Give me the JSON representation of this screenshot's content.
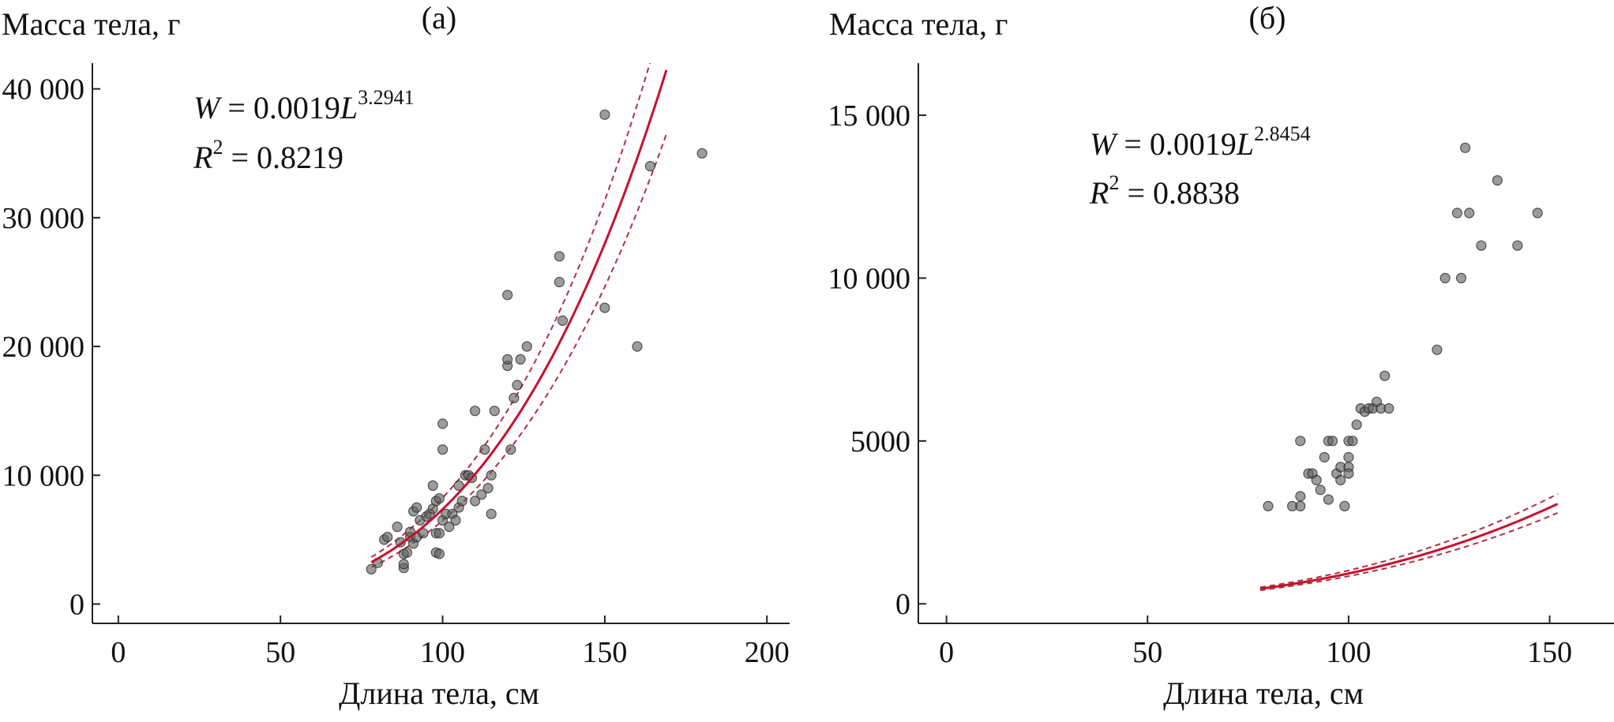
{
  "chart_data": [
    {
      "type": "scatter",
      "panel_label": "(а)",
      "ylabel": "Масса тела, г",
      "xlabel": "Длина тела, см",
      "equation": {
        "W": "W",
        "coef": " = 0.0019",
        "L": "L",
        "exponent": "3.2941",
        "R": "R",
        "sq": "2",
        "r2": " = 0.8219"
      },
      "xlim": [
        -8,
        207
      ],
      "ylim": [
        -1500,
        42000
      ],
      "xticks": [
        0,
        50,
        100,
        150,
        200
      ],
      "xtick_labels": [
        "0",
        "50",
        "100",
        "150",
        "200"
      ],
      "yticks": [
        0,
        10000,
        20000,
        30000,
        40000
      ],
      "ytick_labels": [
        "0",
        "10 000",
        "20 000",
        "30 000",
        "40 000"
      ],
      "fit": {
        "a": 0.0019,
        "b": 3.2941,
        "x_from": 78,
        "x_to": 169
      },
      "ci_band": {
        "upper_factor": 1.12,
        "lower_factor": 0.88
      },
      "points": [
        [
          78,
          2700
        ],
        [
          80,
          3200
        ],
        [
          82,
          5000
        ],
        [
          83,
          5200
        ],
        [
          86,
          6000
        ],
        [
          87,
          4800
        ],
        [
          88,
          2800
        ],
        [
          88,
          3100
        ],
        [
          88,
          3900
        ],
        [
          89,
          4000
        ],
        [
          90,
          5200
        ],
        [
          90,
          5600
        ],
        [
          91,
          4700
        ],
        [
          91,
          7200
        ],
        [
          92,
          5200
        ],
        [
          92,
          7500
        ],
        [
          93,
          6500
        ],
        [
          94,
          5500
        ],
        [
          95,
          6800
        ],
        [
          96,
          7000
        ],
        [
          97,
          7400
        ],
        [
          97,
          9200
        ],
        [
          98,
          8000
        ],
        [
          98,
          5500
        ],
        [
          98,
          4000
        ],
        [
          99,
          5500
        ],
        [
          99,
          3900
        ],
        [
          99,
          8200
        ],
        [
          100,
          12000
        ],
        [
          100,
          14000
        ],
        [
          100,
          6500
        ],
        [
          101,
          7000
        ],
        [
          102,
          6000
        ],
        [
          103,
          7000
        ],
        [
          104,
          6500
        ],
        [
          105,
          7500
        ],
        [
          105,
          9200
        ],
        [
          106,
          8000
        ],
        [
          107,
          10000
        ],
        [
          108,
          10000
        ],
        [
          109,
          9800
        ],
        [
          110,
          15000
        ],
        [
          110,
          8000
        ],
        [
          112,
          8500
        ],
        [
          113,
          12000
        ],
        [
          114,
          9000
        ],
        [
          115,
          10000
        ],
        [
          115,
          7000
        ],
        [
          116,
          15000
        ],
        [
          120,
          18500
        ],
        [
          120,
          19000
        ],
        [
          120,
          24000
        ],
        [
          121,
          12000
        ],
        [
          122,
          16000
        ],
        [
          123,
          17000
        ],
        [
          124,
          19000
        ],
        [
          126,
          20000
        ],
        [
          136,
          25000
        ],
        [
          136,
          27000
        ],
        [
          137,
          22000
        ],
        [
          150,
          23000
        ],
        [
          150,
          38000
        ],
        [
          160,
          20000
        ],
        [
          164,
          34000
        ],
        [
          180,
          35000
        ]
      ]
    },
    {
      "type": "scatter",
      "panel_label": "(б)",
      "ylabel": "Масса тела, г",
      "xlabel": "Длина тела, см",
      "equation": {
        "W": "W",
        "coef": " = 0.0019",
        "L": "L",
        "exponent": "2.8454",
        "R": "R",
        "sq": "2",
        "r2": " = 0.8838"
      },
      "xlim": [
        -7,
        166
      ],
      "ylim": [
        -600,
        16600
      ],
      "xticks": [
        0,
        50,
        100,
        150
      ],
      "xtick_labels": [
        "0",
        "50",
        "100",
        "150"
      ],
      "yticks": [
        0,
        5000,
        10000,
        15000
      ],
      "ytick_labels": [
        "0",
        "5000",
        "10 000",
        "15 000"
      ],
      "fit": {
        "a": 0.0019,
        "b": 2.8454,
        "x_from": 78,
        "x_to": 152
      },
      "ci_band": {
        "upper_factor": 1.1,
        "lower_factor": 0.91
      },
      "points": [
        [
          80,
          3000
        ],
        [
          86,
          3000
        ],
        [
          88,
          3000
        ],
        [
          88,
          5000
        ],
        [
          88,
          3300
        ],
        [
          90,
          4000
        ],
        [
          91,
          4000
        ],
        [
          92,
          3800
        ],
        [
          93,
          3500
        ],
        [
          94,
          4500
        ],
        [
          95,
          5000
        ],
        [
          95,
          3200
        ],
        [
          96,
          5000
        ],
        [
          97,
          4000
        ],
        [
          98,
          4200
        ],
        [
          98,
          3800
        ],
        [
          99,
          3000
        ],
        [
          100,
          4200
        ],
        [
          100,
          4500
        ],
        [
          100,
          4000
        ],
        [
          100,
          5000
        ],
        [
          101,
          5000
        ],
        [
          102,
          5500
        ],
        [
          103,
          6000
        ],
        [
          104,
          5900
        ],
        [
          105,
          6000
        ],
        [
          106,
          6000
        ],
        [
          107,
          6200
        ],
        [
          108,
          6000
        ],
        [
          109,
          7000
        ],
        [
          110,
          6000
        ],
        [
          122,
          7800
        ],
        [
          124,
          10000
        ],
        [
          127,
          12000
        ],
        [
          128,
          10000
        ],
        [
          129,
          14000
        ],
        [
          130,
          12000
        ],
        [
          133,
          11000
        ],
        [
          137,
          13000
        ],
        [
          142,
          11000
        ],
        [
          147,
          12000
        ]
      ]
    }
  ]
}
